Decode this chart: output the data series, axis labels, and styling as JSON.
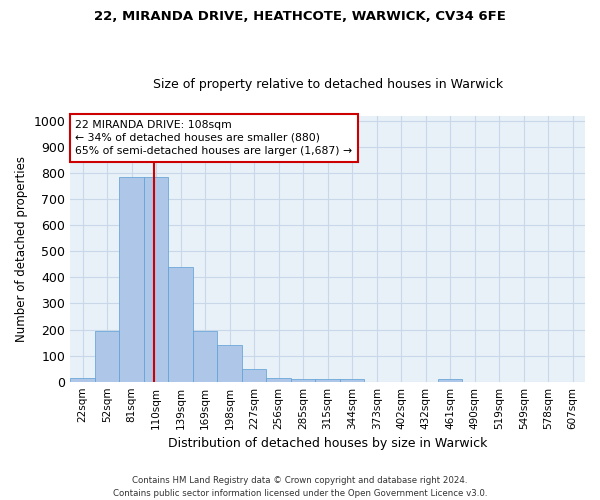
{
  "title1": "22, MIRANDA DRIVE, HEATHCOTE, WARWICK, CV34 6FE",
  "title2": "Size of property relative to detached houses in Warwick",
  "xlabel": "Distribution of detached houses by size in Warwick",
  "ylabel": "Number of detached properties",
  "footer": "Contains HM Land Registry data © Crown copyright and database right 2024.\nContains public sector information licensed under the Open Government Licence v3.0.",
  "categories": [
    "22sqm",
    "52sqm",
    "81sqm",
    "110sqm",
    "139sqm",
    "169sqm",
    "198sqm",
    "227sqm",
    "256sqm",
    "285sqm",
    "315sqm",
    "344sqm",
    "373sqm",
    "402sqm",
    "432sqm",
    "461sqm",
    "490sqm",
    "519sqm",
    "549sqm",
    "578sqm",
    "607sqm"
  ],
  "values": [
    15,
    195,
    785,
    785,
    440,
    195,
    140,
    50,
    15,
    12,
    10,
    10,
    0,
    0,
    0,
    10,
    0,
    0,
    0,
    0,
    0
  ],
  "bar_color": "#aec6e8",
  "bar_edge_color": "#5a9fd4",
  "grid_color": "#c8d8e8",
  "background_color": "#e8f0f8",
  "annotation_box_color": "#ffffff",
  "annotation_line_color": "#cc0000",
  "property_line_bin_index": 2.93,
  "annotation_text": "22 MIRANDA DRIVE: 108sqm\n← 34% of detached houses are smaller (880)\n65% of semi-detached houses are larger (1,687) →",
  "ylim": [
    0,
    1020
  ],
  "yticks": [
    0,
    100,
    200,
    300,
    400,
    500,
    600,
    700,
    800,
    900,
    1000
  ]
}
